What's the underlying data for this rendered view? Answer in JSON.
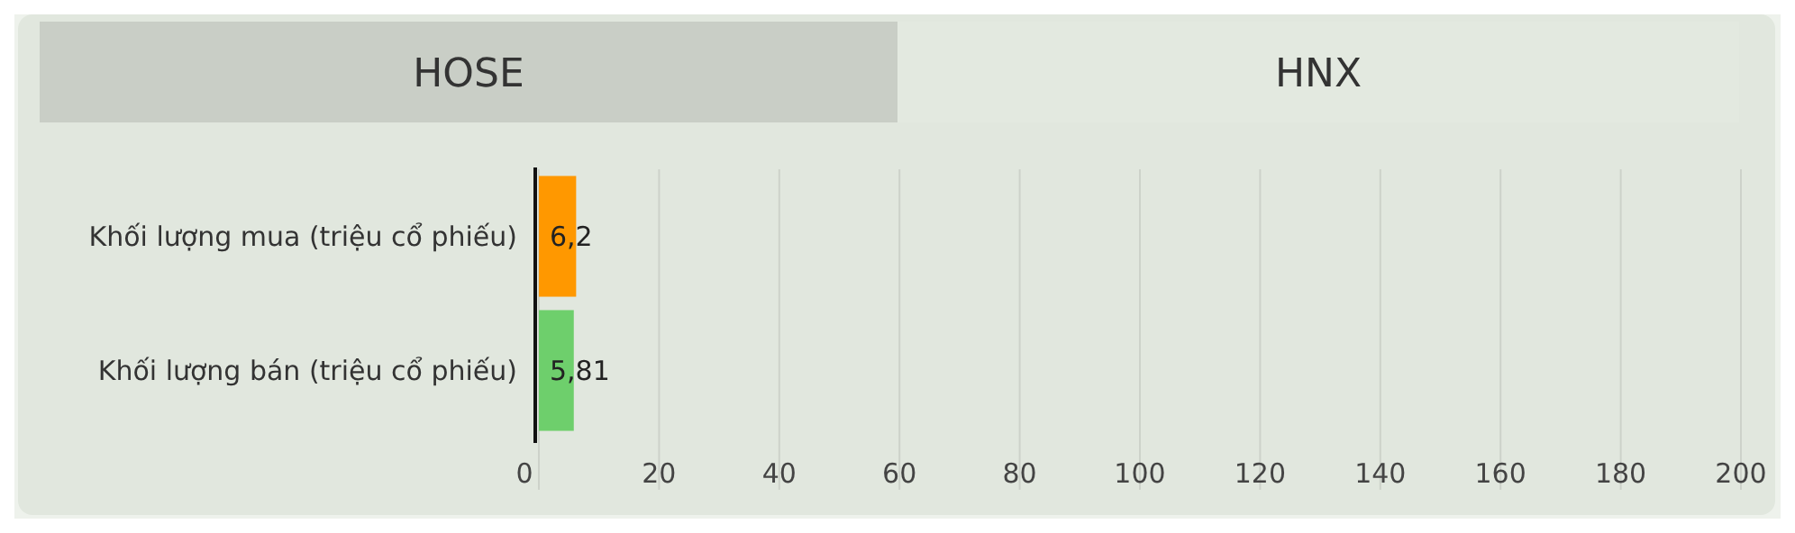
{
  "chart_data": {
    "type": "bar",
    "orientation": "horizontal",
    "categories": [
      "Khối lượng mua (triệu cổ phiếu)",
      "Khối lượng bán (triệu cổ phiếu)"
    ],
    "values": [
      6.2,
      5.81
    ],
    "colors": [
      "#ff9800",
      "#6ecf6c"
    ],
    "value_labels": [
      "6,2",
      "5,81"
    ],
    "xlim": [
      0,
      200
    ],
    "xticks": [
      0,
      20,
      40,
      60,
      80,
      100,
      120,
      140,
      160,
      180,
      200
    ],
    "grid": "x",
    "annotations": [
      "HOSE",
      "HNX"
    ]
  }
}
